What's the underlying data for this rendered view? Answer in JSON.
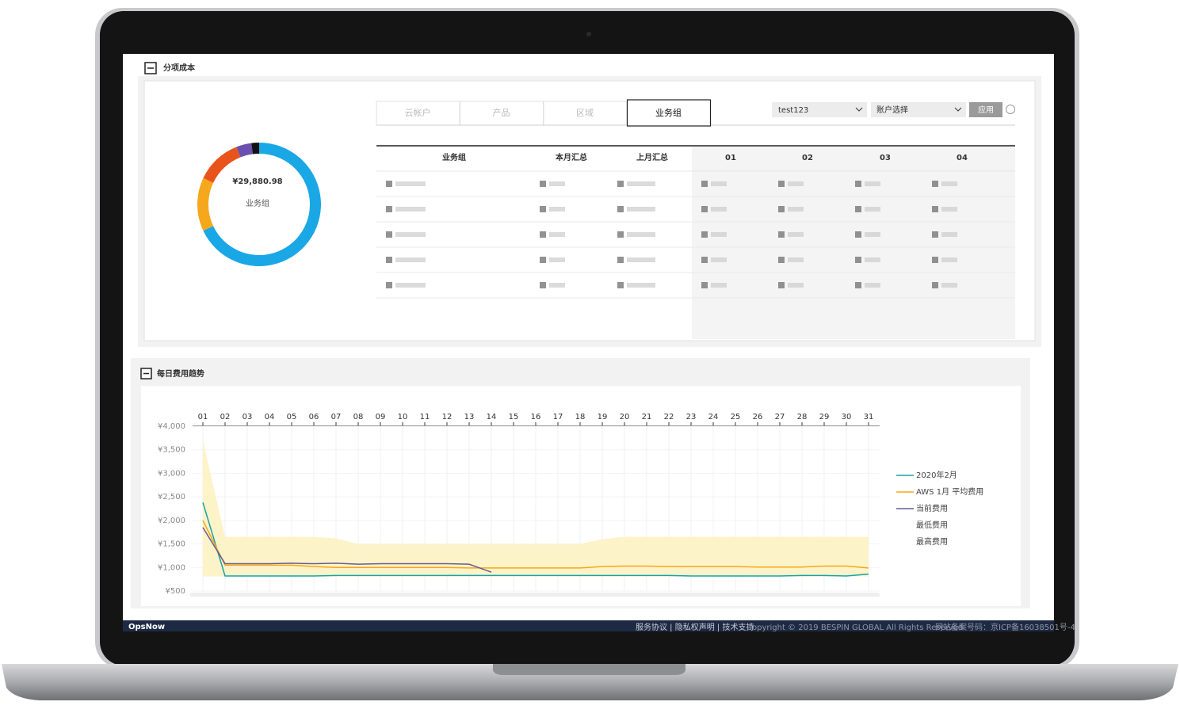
{
  "cost_breakdown": {
    "title": "分项成本",
    "tabs": [
      "云帐户",
      "产品",
      "区域",
      "业务组"
    ],
    "active_tab": 3,
    "account_select": "test123",
    "account_placeholder": "账户选择",
    "apply_button": "应用",
    "donut": {
      "type": "pie",
      "total_label": "¥29,880.98",
      "center_label": "业务组",
      "values": [
        68,
        14,
        12,
        4,
        2
      ],
      "colors": [
        "#1aa7e6",
        "#f5a81c",
        "#e8541c",
        "#6a4fb0",
        "#111111"
      ]
    },
    "table_headers": [
      "业务组",
      "本月汇总",
      "上月汇总",
      "01",
      "02",
      "03",
      "04"
    ]
  },
  "daily_trend": {
    "title": "每日费用趋势",
    "chart": {
      "type": "line",
      "categories": [
        "01",
        "02",
        "03",
        "04",
        "05",
        "06",
        "07",
        "08",
        "09",
        "10",
        "11",
        "12",
        "13",
        "14",
        "15",
        "16",
        "17",
        "18",
        "19",
        "20",
        "21",
        "22",
        "23",
        "24",
        "25",
        "26",
        "27",
        "28",
        "29",
        "30",
        "31"
      ],
      "ylim": [
        500,
        4000
      ],
      "yticks": [
        {
          "value": 4000,
          "label": "¥4,000"
        },
        {
          "value": 3500,
          "label": "¥3,500"
        },
        {
          "value": 3000,
          "label": "¥3,000"
        },
        {
          "value": 2500,
          "label": "¥2,500"
        },
        {
          "value": 2000,
          "label": "¥2,000"
        },
        {
          "value": 1500,
          "label": "¥1,500"
        },
        {
          "value": 1000,
          "label": "¥1,000"
        },
        {
          "value": 500,
          "label": "¥500"
        }
      ],
      "grid": true,
      "series": [
        {
          "name": "2020年2月",
          "color": "#17a3a8",
          "style": "line",
          "values": [
            2380,
            820,
            820,
            820,
            820,
            820,
            830,
            830,
            830,
            830,
            830,
            830,
            830,
            830,
            830,
            830,
            830,
            830,
            830,
            830,
            830,
            830,
            820,
            820,
            820,
            820,
            820,
            830,
            830,
            820,
            860
          ]
        },
        {
          "name": "AWS 1月 平均费用",
          "color": "#f5a81c",
          "style": "line",
          "values": [
            2000,
            1050,
            1050,
            1050,
            1050,
            1020,
            1000,
            1000,
            1000,
            1000,
            1000,
            1000,
            990,
            990,
            990,
            990,
            990,
            990,
            1020,
            1030,
            1030,
            1020,
            1020,
            1020,
            1020,
            1010,
            1010,
            1010,
            1030,
            1030,
            990
          ]
        },
        {
          "name": "当前费用",
          "color": "#6a5a94",
          "style": "line",
          "values": [
            1850,
            1080,
            1080,
            1080,
            1090,
            1080,
            1090,
            1070,
            1080,
            1080,
            1080,
            1080,
            1070,
            900,
            null,
            null,
            null,
            null,
            null,
            null,
            null,
            null,
            null,
            null,
            null,
            null,
            null,
            null,
            null,
            null,
            null
          ]
        },
        {
          "name": "最低费用",
          "color": "#fdf3c8",
          "style": "band",
          "values": [
            820,
            820,
            820,
            820,
            820,
            820,
            820,
            820,
            820,
            820,
            820,
            820,
            820,
            820,
            820,
            820,
            820,
            820,
            820,
            820,
            820,
            820,
            820,
            820,
            820,
            820,
            820,
            820,
            820,
            820,
            820
          ]
        },
        {
          "name": "最高费用",
          "color": "#fdf3c8",
          "style": "band",
          "values": [
            3700,
            1650,
            1650,
            1650,
            1650,
            1650,
            1620,
            1500,
            1500,
            1500,
            1500,
            1500,
            1500,
            1500,
            1500,
            1500,
            1500,
            1500,
            1600,
            1650,
            1650,
            1650,
            1650,
            1650,
            1650,
            1650,
            1650,
            1650,
            1650,
            1650,
            1650
          ]
        }
      ]
    }
  },
  "footer": {
    "brand": "OpsNow",
    "links": "服务协议 | 隐私权声明 | 技术支持",
    "copyright": "Copyright © 2019 BESPIN GLOBAL All Rights Reserved",
    "icp": "网站备案号码：京ICP备16038501号-4"
  }
}
